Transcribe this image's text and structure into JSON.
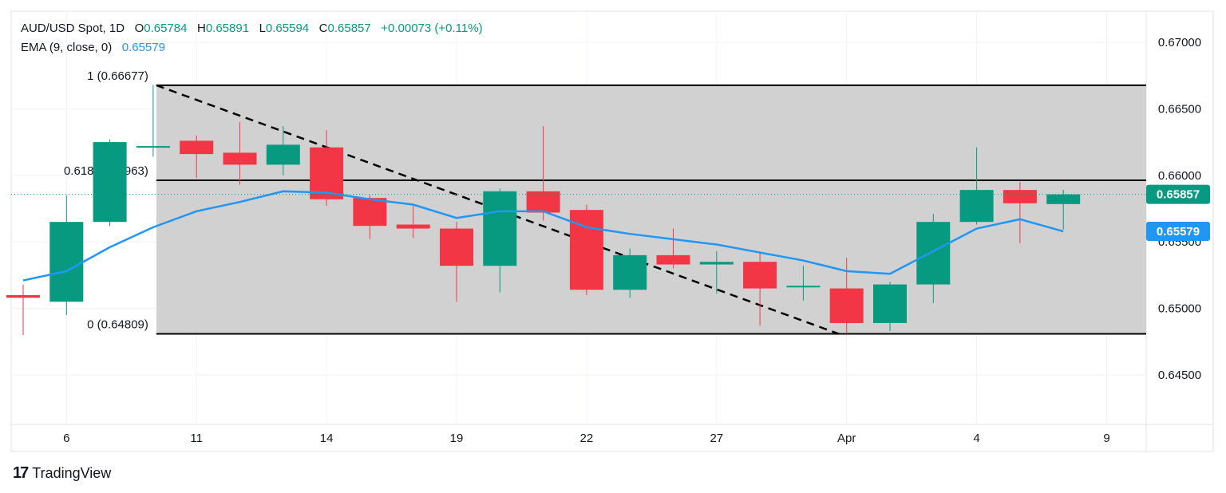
{
  "legend": {
    "symbol": "AUD/USD Spot, 1D",
    "open_label": "O",
    "open": "0.65784",
    "high_label": "H",
    "high": "0.65891",
    "low_label": "L",
    "low": "0.65594",
    "close_label": "C",
    "close": "0.65857",
    "change": "+0.00073 (+0.11%)",
    "ema_label": "EMA (9, close, 0)",
    "ema_value": "0.65579"
  },
  "brand": {
    "logo": "17",
    "name": "TradingView"
  },
  "colors": {
    "up": "#089981",
    "down": "#f23645",
    "ema": "#2196f3",
    "fib_fill": "#d1d1d1",
    "grid": "#f0f3fa",
    "axis_text": "#131722"
  },
  "chart_data": {
    "type": "candlestick",
    "ylim": [
      0.6425,
      0.6705
    ],
    "y_ticks": [
      "0.67000",
      "0.66500",
      "0.66000",
      "0.65500",
      "0.65000",
      "0.64500"
    ],
    "x_ticks": [
      {
        "label": "6",
        "index": 1
      },
      {
        "label": "11",
        "index": 4
      },
      {
        "label": "14",
        "index": 7
      },
      {
        "label": "19",
        "index": 10
      },
      {
        "label": "22",
        "index": 13
      },
      {
        "label": "27",
        "index": 16
      },
      {
        "label": "Apr",
        "index": 19
      },
      {
        "label": "4",
        "index": 22
      },
      {
        "label": "9",
        "index": 25
      }
    ],
    "candles": [
      {
        "o": 0.651,
        "h": 0.6518,
        "l": 0.648,
        "c": 0.6508
      },
      {
        "o": 0.6505,
        "h": 0.6585,
        "l": 0.6495,
        "c": 0.6565
      },
      {
        "o": 0.6565,
        "h": 0.6627,
        "l": 0.6562,
        "c": 0.6625
      },
      {
        "o": 0.6621,
        "h": 0.6668,
        "l": 0.6614,
        "c": 0.6622
      },
      {
        "o": 0.6626,
        "h": 0.663,
        "l": 0.6598,
        "c": 0.6616
      },
      {
        "o": 0.6617,
        "h": 0.664,
        "l": 0.6593,
        "c": 0.6608
      },
      {
        "o": 0.6608,
        "h": 0.6637,
        "l": 0.66,
        "c": 0.6623
      },
      {
        "o": 0.6621,
        "h": 0.6634,
        "l": 0.6577,
        "c": 0.6582
      },
      {
        "o": 0.6583,
        "h": 0.6585,
        "l": 0.6552,
        "c": 0.6562
      },
      {
        "o": 0.6563,
        "h": 0.6577,
        "l": 0.6553,
        "c": 0.656
      },
      {
        "o": 0.656,
        "h": 0.6565,
        "l": 0.6505,
        "c": 0.6532
      },
      {
        "o": 0.6532,
        "h": 0.659,
        "l": 0.6512,
        "c": 0.6588
      },
      {
        "o": 0.6588,
        "h": 0.6637,
        "l": 0.6566,
        "c": 0.6572
      },
      {
        "o": 0.6574,
        "h": 0.6578,
        "l": 0.651,
        "c": 0.6514
      },
      {
        "o": 0.6514,
        "h": 0.6545,
        "l": 0.6508,
        "c": 0.654
      },
      {
        "o": 0.654,
        "h": 0.656,
        "l": 0.653,
        "c": 0.6533
      },
      {
        "o": 0.6533,
        "h": 0.6543,
        "l": 0.6511,
        "c": 0.6535
      },
      {
        "o": 0.6535,
        "h": 0.6542,
        "l": 0.6487,
        "c": 0.6515
      },
      {
        "o": 0.6517,
        "h": 0.6532,
        "l": 0.6506,
        "c": 0.6517
      },
      {
        "o": 0.6515,
        "h": 0.6538,
        "l": 0.6481,
        "c": 0.6489
      },
      {
        "o": 0.6489,
        "h": 0.652,
        "l": 0.6483,
        "c": 0.6518
      },
      {
        "o": 0.6518,
        "h": 0.6571,
        "l": 0.6504,
        "c": 0.6565
      },
      {
        "o": 0.6565,
        "h": 0.6621,
        "l": 0.6563,
        "c": 0.6589
      },
      {
        "o": 0.6589,
        "h": 0.6595,
        "l": 0.6549,
        "c": 0.6579
      },
      {
        "o": 0.65784,
        "h": 0.65891,
        "l": 0.65594,
        "c": 0.65857
      }
    ],
    "ema": [
      0.6521,
      0.6528,
      0.6546,
      0.6561,
      0.6573,
      0.658,
      0.6588,
      0.6587,
      0.6582,
      0.6578,
      0.6568,
      0.6573,
      0.6573,
      0.6561,
      0.6556,
      0.6552,
      0.6548,
      0.6542,
      0.6536,
      0.6528,
      0.6526,
      0.6543,
      0.656,
      0.6567,
      0.65579
    ],
    "fib": {
      "levels": [
        {
          "ratio": "1",
          "value": 0.66677,
          "label": "1 (0.66677)"
        },
        {
          "ratio": "0.618",
          "value": 0.65963,
          "label": "0.618 (0.65963)"
        },
        {
          "ratio": "0",
          "value": 0.64809,
          "label": "0 (0.64809)"
        }
      ],
      "start_index": 3,
      "end_index": 25.6
    },
    "trendline": {
      "start_index": 3,
      "start_value": 0.66677,
      "end_index": 19,
      "end_value": 0.64809
    },
    "last_price": {
      "value": 0.65857,
      "label": "0.65857"
    },
    "ema_price": {
      "value": 0.65579,
      "label": "0.65579"
    }
  }
}
